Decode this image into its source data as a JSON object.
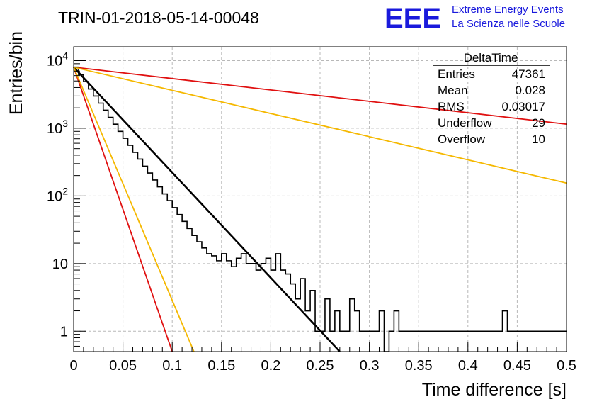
{
  "run_title": "TRIN-01-2018-05-14-00048",
  "logo": {
    "letters": "EEE",
    "line1": "Extreme Energy Events",
    "line2": "La Scienza nelle Scuole",
    "color": "#1a1adc"
  },
  "stats": {
    "title": "DeltaTime",
    "rows": [
      {
        "label": "Entries",
        "value": "47361"
      },
      {
        "label": "Mean",
        "value": "0.028"
      },
      {
        "label": "RMS",
        "value": "0.03017"
      },
      {
        "label": "Underflow",
        "value": "29"
      },
      {
        "label": "Overflow",
        "value": "10"
      }
    ]
  },
  "chart_data": {
    "type": "line",
    "xlabel": "Time difference [s]",
    "ylabel": "Entries/bin",
    "xlim": [
      0,
      0.5
    ],
    "ylim": [
      0.5,
      16000
    ],
    "yscale": "log",
    "grid": true,
    "x_ticks": [
      "0",
      "0.05",
      "0.1",
      "0.15",
      "0.2",
      "0.25",
      "0.3",
      "0.35",
      "0.4",
      "0.45",
      "0.5"
    ],
    "y_ticks": [
      {
        "value": 1,
        "label": "1"
      },
      {
        "value": 10,
        "label": "10"
      },
      {
        "value": 100,
        "label": "10^2"
      },
      {
        "value": 1000,
        "label": "10^3"
      },
      {
        "value": 10000,
        "label": "10^4"
      }
    ],
    "histogram": {
      "name": "DeltaTime",
      "color": "#000000",
      "bin_width": 0.005,
      "x_start": 0,
      "values": [
        8000,
        6200,
        4900,
        3800,
        3000,
        2350,
        1850,
        1450,
        1150,
        900,
        710,
        560,
        440,
        350,
        275,
        218,
        172,
        136,
        107,
        85,
        67,
        53,
        42,
        33,
        26,
        21,
        17,
        14,
        13,
        11,
        14,
        11,
        9,
        12,
        14,
        10,
        10,
        8,
        10,
        12,
        8,
        14,
        8,
        7,
        5,
        3,
        6,
        2,
        4,
        1,
        1,
        3,
        1,
        2,
        1,
        1,
        3,
        2,
        1,
        1,
        1,
        1,
        2,
        0.5,
        1,
        2,
        1,
        1,
        1,
        1,
        1,
        1,
        1,
        1,
        1,
        1,
        1,
        1,
        1,
        1,
        1,
        1,
        1,
        1,
        1,
        1,
        1,
        2,
        1,
        1,
        1,
        1,
        1,
        1,
        1,
        1,
        1,
        1,
        1,
        1
      ]
    },
    "fits": [
      {
        "color": "#000000",
        "x": [
          0,
          0.27
        ],
        "y": [
          8000,
          0.5
        ]
      },
      {
        "color": "#e01010",
        "x": [
          0,
          0.1
        ],
        "y": [
          8000,
          0.5
        ]
      },
      {
        "color": "#f5b800",
        "x": [
          0,
          0.122
        ],
        "y": [
          8000,
          0.5
        ]
      },
      {
        "color": "#e01010",
        "x": [
          0,
          0.5
        ],
        "y": [
          8000,
          1150
        ]
      },
      {
        "color": "#f5b800",
        "x": [
          0,
          0.5
        ],
        "y": [
          8000,
          155
        ]
      }
    ]
  }
}
